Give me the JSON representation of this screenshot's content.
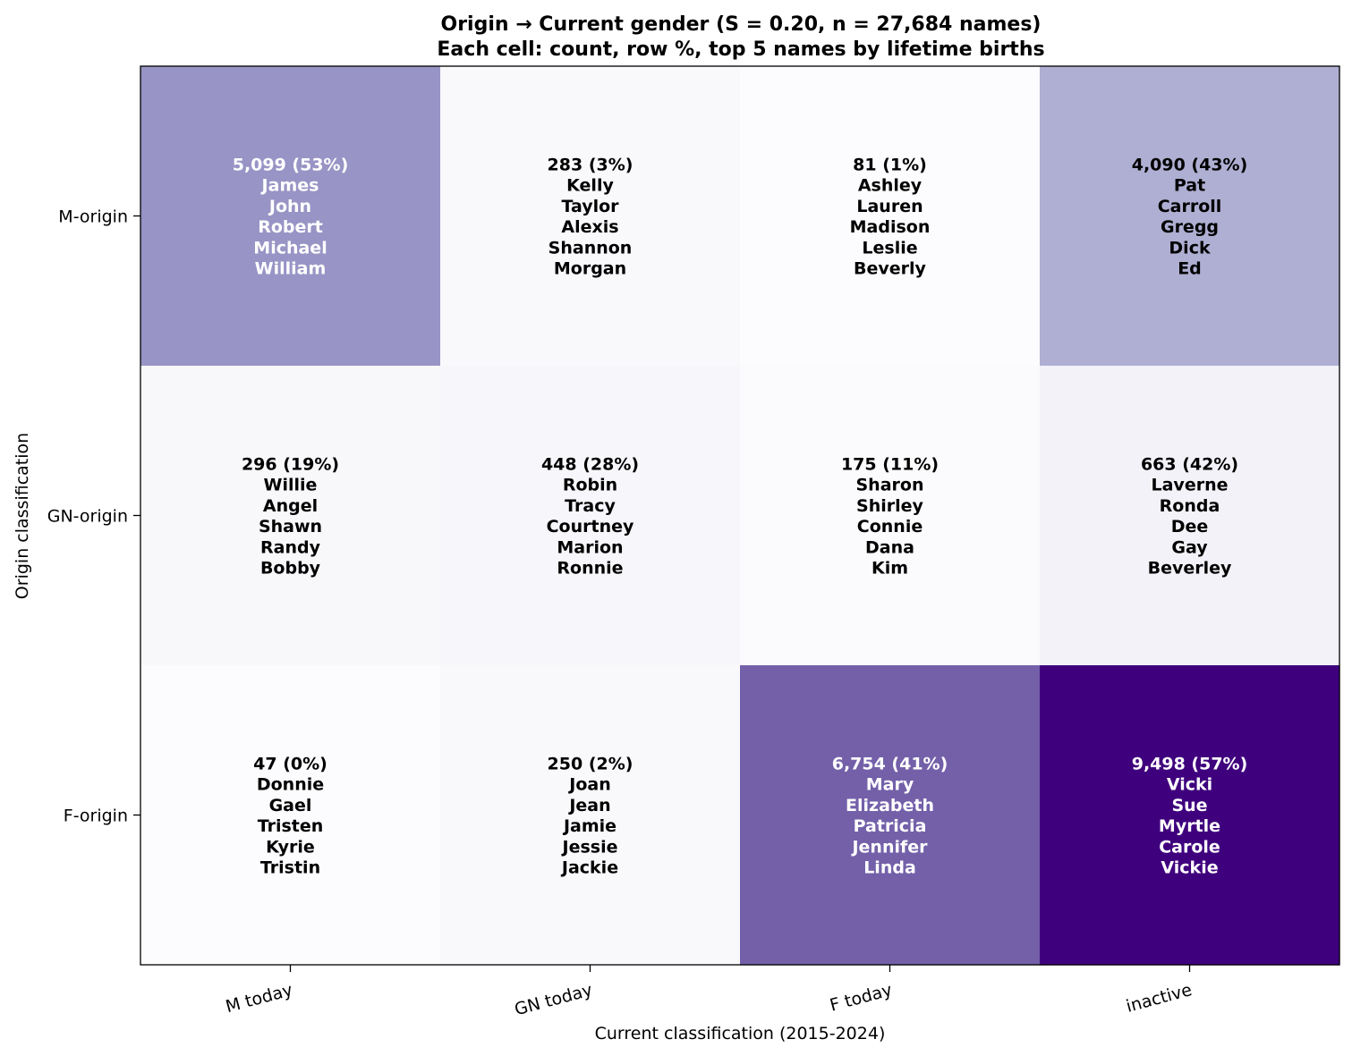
{
  "chart_data": {
    "type": "heatmap",
    "title": "Origin → Current gender (S = 0.20, n = 27,684 names)",
    "subtitle": "Each cell: count, row %, top 5 names by lifetime births",
    "xlabel": "Current classification (2015-2024)",
    "ylabel": "Origin classification",
    "x_categories": [
      "M today",
      "GN today",
      "F today",
      "inactive"
    ],
    "y_categories": [
      "M-origin",
      "GN-origin",
      "F-origin"
    ],
    "colormap": "Purples",
    "value_measure": "row_pct",
    "cells": [
      [
        {
          "label": "5,099 (53%)",
          "count": 5099,
          "row_pct": 53,
          "names": [
            "James",
            "John",
            "Robert",
            "Michael",
            "William"
          ],
          "color": "#9894c5",
          "text_color": "#ffffff"
        },
        {
          "label": "283 (3%)",
          "count": 283,
          "row_pct": 3,
          "names": [
            "Kelly",
            "Taylor",
            "Alexis",
            "Shannon",
            "Morgan"
          ],
          "color": "#f9f8fb",
          "text_color": "#000000"
        },
        {
          "label": "81 (1%)",
          "count": 81,
          "row_pct": 1,
          "names": [
            "Ashley",
            "Lauren",
            "Madison",
            "Leslie",
            "Beverly"
          ],
          "color": "#fcfbfd",
          "text_color": "#000000"
        },
        {
          "label": "4,090 (43%)",
          "count": 4090,
          "row_pct": 43,
          "names": [
            "Pat",
            "Carroll",
            "Gregg",
            "Dick",
            "Ed"
          ],
          "color": "#afafd3",
          "text_color": "#000000"
        }
      ],
      [
        {
          "label": "296 (19%)",
          "count": 296,
          "row_pct": 19,
          "names": [
            "Willie",
            "Angel",
            "Shawn",
            "Randy",
            "Bobby"
          ],
          "color": "#f8f7fa",
          "text_color": "#000000"
        },
        {
          "label": "448 (28%)",
          "count": 448,
          "row_pct": 28,
          "names": [
            "Robin",
            "Tracy",
            "Courtney",
            "Marion",
            "Ronnie"
          ],
          "color": "#f7f6fa",
          "text_color": "#000000"
        },
        {
          "label": "175 (11%)",
          "count": 175,
          "row_pct": 11,
          "names": [
            "Sharon",
            "Shirley",
            "Connie",
            "Dana",
            "Kim"
          ],
          "color": "#fbfafc",
          "text_color": "#000000"
        },
        {
          "label": "663 (42%)",
          "count": 663,
          "row_pct": 42,
          "names": [
            "Laverne",
            "Ronda",
            "Dee",
            "Gay",
            "Beverley"
          ],
          "color": "#f3f2f8",
          "text_color": "#000000"
        }
      ],
      [
        {
          "label": "47 (0%)",
          "count": 47,
          "row_pct": 0,
          "names": [
            "Donnie",
            "Gael",
            "Tristen",
            "Kyrie",
            "Tristin"
          ],
          "color": "#fcfbfd",
          "text_color": "#000000"
        },
        {
          "label": "250 (2%)",
          "count": 250,
          "row_pct": 2,
          "names": [
            "Joan",
            "Jean",
            "Jamie",
            "Jessie",
            "Jackie"
          ],
          "color": "#f9f8fb",
          "text_color": "#000000"
        },
        {
          "label": "6,754 (41%)",
          "count": 6754,
          "row_pct": 41,
          "names": [
            "Mary",
            "Elizabeth",
            "Patricia",
            "Jennifer",
            "Linda"
          ],
          "color": "#7360a9",
          "text_color": "#ffffff"
        },
        {
          "label": "9,498 (57%)",
          "count": 9498,
          "row_pct": 57,
          "names": [
            "Vicki",
            "Sue",
            "Myrtle",
            "Carole",
            "Vickie"
          ],
          "color": "#3f007d",
          "text_color": "#ffffff"
        }
      ]
    ]
  }
}
